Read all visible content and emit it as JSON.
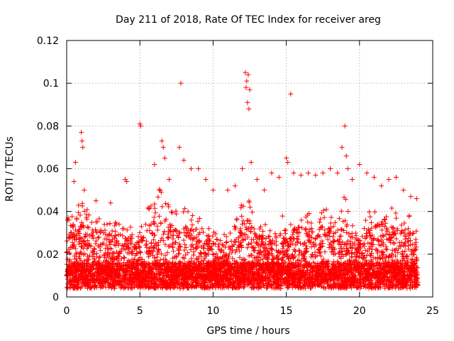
{
  "chart_data": {
    "type": "scatter",
    "title": "Day 211 of 2018, Rate Of TEC Index for receiver areg",
    "xlabel": "GPS time / hours",
    "ylabel": "ROTI / TECUs",
    "xlim": [
      0,
      25
    ],
    "ylim": [
      0,
      0.12
    ],
    "x_ticks": [
      0,
      5,
      10,
      15,
      20,
      25
    ],
    "x_tick_labels": [
      "0",
      "5",
      "10",
      "15",
      "20",
      "25"
    ],
    "y_ticks": [
      0,
      0.02,
      0.04,
      0.06,
      0.08,
      0.1,
      0.12
    ],
    "y_tick_labels": [
      "0",
      "0.02",
      "0.04",
      "0.06",
      "0.08",
      "0.1",
      "0.12"
    ],
    "grid": true,
    "marker": "plus",
    "color": "#ff0000",
    "series": [
      {
        "name": "ROTI",
        "x": [
          0.05,
          0.1,
          0.15,
          0.5,
          1.0,
          1.05,
          1.1,
          0.6,
          1.2,
          2.0,
          3.0,
          4.0,
          4.1,
          5.0,
          5.05,
          6.0,
          6.5,
          6.6,
          6.7,
          7.0,
          7.8,
          7.7,
          8.0,
          8.5,
          9.0,
          9.5,
          10.0,
          11.0,
          11.5,
          12.0,
          12.2,
          12.3,
          12.4,
          12.5,
          12.25,
          12.35,
          12.45,
          12.6,
          13.0,
          13.5,
          14.0,
          14.5,
          15.0,
          15.1,
          15.3,
          15.5,
          16.0,
          16.5,
          17.0,
          17.5,
          18.0,
          18.5,
          18.8,
          19.0,
          19.1,
          19.2,
          19.5,
          20.0,
          20.5,
          21.0,
          21.5,
          22.0,
          22.5,
          23.0,
          23.5,
          23.9
        ],
        "y": [
          0.036,
          0.037,
          0.036,
          0.054,
          0.077,
          0.073,
          0.07,
          0.063,
          0.05,
          0.045,
          0.044,
          0.055,
          0.054,
          0.081,
          0.08,
          0.062,
          0.073,
          0.07,
          0.065,
          0.055,
          0.1,
          0.07,
          0.064,
          0.06,
          0.06,
          0.055,
          0.05,
          0.05,
          0.052,
          0.06,
          0.105,
          0.101,
          0.104,
          0.097,
          0.098,
          0.091,
          0.088,
          0.063,
          0.055,
          0.05,
          0.058,
          0.056,
          0.065,
          0.063,
          0.095,
          0.058,
          0.057,
          0.058,
          0.057,
          0.058,
          0.06,
          0.058,
          0.07,
          0.08,
          0.066,
          0.06,
          0.055,
          0.062,
          0.058,
          0.056,
          0.052,
          0.055,
          0.056,
          0.05,
          0.047,
          0.046
        ]
      }
    ]
  }
}
